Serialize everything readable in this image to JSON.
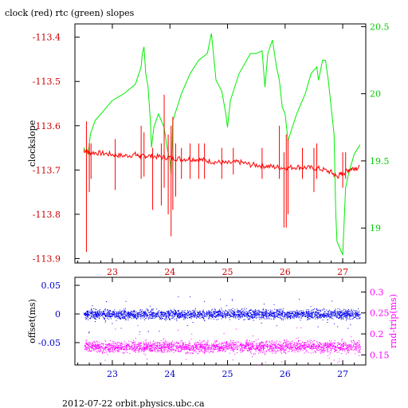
{
  "chart_data": [
    {
      "type": "line",
      "title": "clock (red) rtc (green) slopes",
      "ylabel_left": "clockslope",
      "xlim": [
        22.35,
        27.4
      ],
      "ylim_left": [
        -113.91,
        -113.37
      ],
      "ylim_right": [
        18.74,
        20.52
      ],
      "x_ticks": [
        23,
        24,
        25,
        26,
        27
      ],
      "x_tick_labels": [
        "23",
        "24",
        "25",
        "26",
        "27"
      ],
      "y_left_ticks": [
        -113.4,
        -113.5,
        -113.6,
        -113.7,
        -113.8,
        -113.9
      ],
      "y_left_tick_labels": [
        "-113.4",
        "-113.5",
        "-113.6",
        "-113.7",
        "-113.8",
        "-113.9"
      ],
      "y_right_ticks": [
        20.5,
        20,
        19.5,
        19
      ],
      "y_right_tick_labels": [
        "20.5",
        "20",
        "19.5",
        "19"
      ],
      "colors": {
        "axis": "#cc0000",
        "right_axis": "#00cc00",
        "clock": "#ff0000",
        "rtc": "#00ee00",
        "frame": "#000000"
      },
      "series": [
        {
          "axis": "left",
          "color": "#ff0000",
          "x": [
            22.5,
            22.6,
            22.8,
            23.0,
            23.2,
            23.4,
            23.5,
            23.6,
            23.8,
            24.0,
            24.2,
            24.4,
            24.6,
            24.8,
            25.0,
            25.2,
            25.4,
            25.6,
            25.8,
            26.0,
            26.2,
            26.4,
            26.6,
            26.8,
            26.9,
            27.0,
            27.1,
            27.2,
            27.3
          ],
          "y": [
            -113.655,
            -113.66,
            -113.662,
            -113.665,
            -113.668,
            -113.665,
            -113.67,
            -113.668,
            -113.67,
            -113.672,
            -113.675,
            -113.675,
            -113.678,
            -113.682,
            -113.685,
            -113.682,
            -113.688,
            -113.69,
            -113.693,
            -113.695,
            -113.693,
            -113.695,
            -113.697,
            -113.705,
            -113.715,
            -113.708,
            -113.7,
            -113.695,
            -113.695
          ]
        },
        {
          "axis": "left",
          "type": "spikes",
          "color": "#ff0000",
          "x": [
            22.55,
            22.6,
            22.63,
            23.05,
            23.5,
            23.55,
            23.7,
            23.85,
            23.9,
            23.97,
            24.02,
            24.05,
            24.1,
            24.2,
            24.35,
            24.5,
            24.6,
            24.9,
            25.1,
            25.6,
            25.9,
            25.98,
            26.02,
            26.05,
            26.3,
            26.5,
            26.55,
            27.0,
            27.05
          ],
          "ymin": [
            -113.885,
            -113.75,
            -113.72,
            -113.745,
            -113.72,
            -113.715,
            -113.79,
            -113.78,
            -113.74,
            -113.8,
            -113.85,
            -113.79,
            -113.76,
            -113.72,
            -113.72,
            -113.72,
            -113.72,
            -113.72,
            -113.71,
            -113.72,
            -113.72,
            -113.83,
            -113.83,
            -113.8,
            -113.72,
            -113.75,
            -113.72,
            -113.74,
            -113.72
          ],
          "ymax": [
            -113.59,
            -113.64,
            -113.64,
            -113.63,
            -113.6,
            -113.615,
            -113.65,
            -113.64,
            -113.53,
            -113.62,
            -113.6,
            -113.58,
            -113.64,
            -113.65,
            -113.64,
            -113.64,
            -113.64,
            -113.65,
            -113.65,
            -113.65,
            -113.6,
            -113.66,
            -113.62,
            -113.63,
            -113.65,
            -113.65,
            -113.64,
            -113.66,
            -113.66
          ]
        },
        {
          "axis": "right",
          "color": "#00ee00",
          "x": [
            22.5,
            22.58,
            22.62,
            22.7,
            23.0,
            23.2,
            23.4,
            23.5,
            23.52,
            23.55,
            23.58,
            23.62,
            23.66,
            23.68,
            23.72,
            23.8,
            23.9,
            23.95,
            24.0,
            24.02,
            24.05,
            24.2,
            24.35,
            24.5,
            24.65,
            24.72,
            24.8,
            24.9,
            24.97,
            25.0,
            25.05,
            25.2,
            25.4,
            25.5,
            25.6,
            25.65,
            25.7,
            25.78,
            25.85,
            25.9,
            25.95,
            26.0,
            26.05,
            26.2,
            26.35,
            26.45,
            26.55,
            26.58,
            26.65,
            26.7,
            26.75,
            26.8,
            26.85,
            26.88,
            26.9,
            26.95,
            27.0,
            27.05,
            27.1,
            27.2,
            27.3
          ],
          "y": [
            19.6,
            19.55,
            19.7,
            19.8,
            19.95,
            20.0,
            20.07,
            20.2,
            20.3,
            20.35,
            20.15,
            20.05,
            19.8,
            19.6,
            19.75,
            19.85,
            19.75,
            19.6,
            19.5,
            19.4,
            19.8,
            20.0,
            20.15,
            20.25,
            20.3,
            20.45,
            20.1,
            20.02,
            19.85,
            19.75,
            19.95,
            20.15,
            20.3,
            20.3,
            20.32,
            20.05,
            20.3,
            20.4,
            20.2,
            20.1,
            19.9,
            19.85,
            19.65,
            19.85,
            20.0,
            20.15,
            20.2,
            20.1,
            20.25,
            20.25,
            20.1,
            19.9,
            19.7,
            19.1,
            18.9,
            18.85,
            18.8,
            19.3,
            19.4,
            19.55,
            19.62
          ]
        }
      ]
    },
    {
      "type": "scatter",
      "ylabel_left": "offset(ms)",
      "ylabel_right": "rnd-trip(ms)",
      "xlim": [
        22.35,
        27.4
      ],
      "ylim_left": [
        -0.089,
        0.064
      ],
      "ylim_right": [
        0.126,
        0.335
      ],
      "x_ticks": [
        23,
        24,
        25,
        26,
        27
      ],
      "x_tick_labels": [
        "23",
        "24",
        "25",
        "26",
        "27"
      ],
      "y_left_ticks": [
        0.05,
        0,
        -0.05
      ],
      "y_left_tick_labels": [
        "0.05",
        "0",
        "-0.05"
      ],
      "y_right_ticks": [
        0.3,
        0.25,
        0.2,
        0.15
      ],
      "y_right_tick_labels": [
        "0.3",
        "0.25",
        "0.2",
        "0.15"
      ],
      "colors": {
        "axis": "#0000cc",
        "right_axis": "#ff00ff",
        "offset": "#0000ee",
        "roundtrip": "#ff00ff",
        "frame": "#000000"
      },
      "series": [
        {
          "axis": "left",
          "color": "#0000ee",
          "x_range": [
            22.5,
            27.3
          ],
          "y_center": 0.0,
          "y_spread": 0.012
        },
        {
          "axis": "right",
          "color": "#ff00ff",
          "x_range": [
            22.5,
            27.3
          ],
          "y_center": 0.17,
          "y_spread": 0.02
        }
      ]
    }
  ],
  "footer": "2012-07-22 orbit.physics.ubc.ca"
}
